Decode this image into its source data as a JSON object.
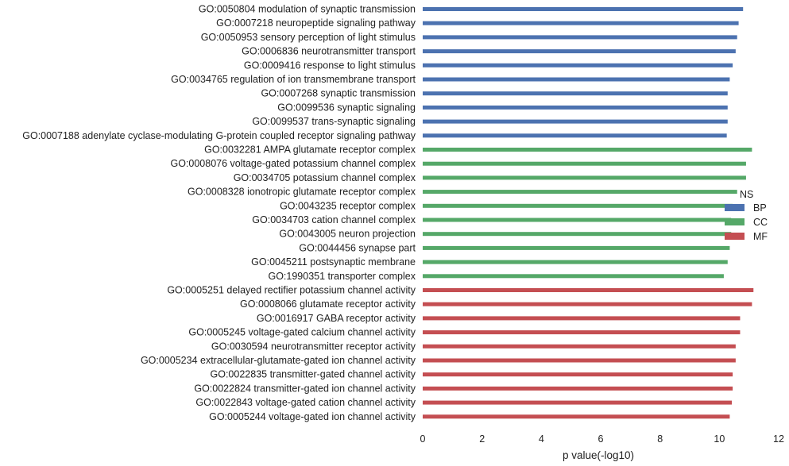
{
  "chart_data": {
    "type": "bar",
    "orientation": "horizontal",
    "xlabel": "p value(-log10)",
    "ylabel": "",
    "xlim": [
      0,
      12
    ],
    "xticks": [
      0,
      2,
      4,
      6,
      8,
      10,
      12
    ],
    "grid": false,
    "legend": {
      "placement": "right",
      "title": "NS",
      "entries": [
        {
          "name": "BP",
          "color": "#4c72b0"
        },
        {
          "name": "CC",
          "color": "#55a868"
        },
        {
          "name": "MF",
          "color": "#c44e52"
        }
      ]
    },
    "categories": [
      "GO:0050804 modulation of synaptic transmission",
      "GO:0007218 neuropeptide signaling pathway",
      "GO:0050953 sensory perception of light stimulus",
      "GO:0006836 neurotransmitter transport",
      "GO:0009416 response to light stimulus",
      "GO:0034765 regulation of ion transmembrane transport",
      "GO:0007268 synaptic transmission",
      "GO:0099536 synaptic signaling",
      "GO:0099537 trans-synaptic signaling",
      "GO:0007188 adenylate cyclase-modulating G-protein coupled receptor signaling pathway",
      "GO:0032281 AMPA glutamate receptor complex",
      "GO:0008076 voltage-gated potassium channel complex",
      "GO:0034705 potassium channel complex",
      "GO:0008328 ionotropic glutamate receptor complex",
      "GO:0043235 receptor complex",
      "GO:0034703 cation channel complex",
      "GO:0043005 neuron projection",
      "GO:0044456 synapse part",
      "GO:0045211 postsynaptic membrane",
      "GO:1990351 transporter complex",
      "GO:0005251 delayed rectifier potassium channel activity",
      "GO:0008066 glutamate receptor activity",
      "GO:0016917 GABA receptor activity",
      "GO:0005245 voltage-gated calcium channel activity",
      "GO:0030594 neurotransmitter receptor activity",
      "GO:0005234 extracellular-glutamate-gated ion channel activity",
      "GO:0022835 transmitter-gated channel activity",
      "GO:0022824 transmitter-gated ion channel activity",
      "GO:0022843 voltage-gated cation channel activity",
      "GO:0005244 voltage-gated ion channel activity"
    ],
    "groups": [
      "BP",
      "BP",
      "BP",
      "BP",
      "BP",
      "BP",
      "BP",
      "BP",
      "BP",
      "BP",
      "CC",
      "CC",
      "CC",
      "CC",
      "CC",
      "CC",
      "CC",
      "CC",
      "CC",
      "CC",
      "MF",
      "MF",
      "MF",
      "MF",
      "MF",
      "MF",
      "MF",
      "MF",
      "MF",
      "MF"
    ],
    "values": [
      10.8,
      10.65,
      10.6,
      10.55,
      10.45,
      10.35,
      10.28,
      10.28,
      10.28,
      10.25,
      11.1,
      10.9,
      10.9,
      10.6,
      10.45,
      10.4,
      10.4,
      10.35,
      10.28,
      10.15,
      11.15,
      11.1,
      10.7,
      10.7,
      10.55,
      10.55,
      10.45,
      10.45,
      10.42,
      10.35
    ]
  }
}
